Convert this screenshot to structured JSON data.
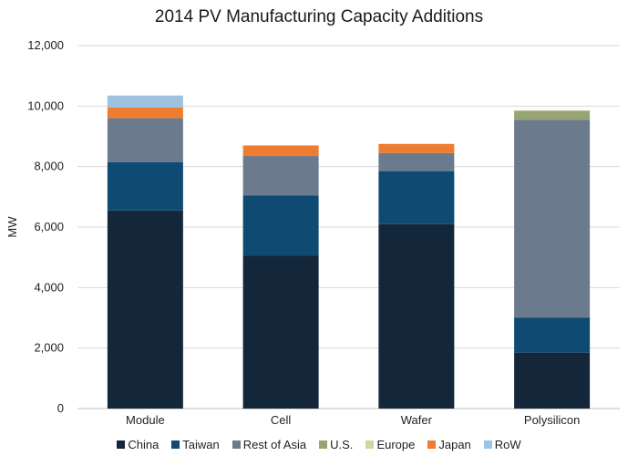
{
  "chart_data": {
    "type": "bar",
    "stacked": true,
    "title": "2014 PV Manufacturing Capacity Additions",
    "xlabel": "",
    "ylabel": "MW",
    "ylim": [
      0,
      12000
    ],
    "yticks": [
      0,
      2000,
      4000,
      6000,
      8000,
      10000,
      12000
    ],
    "ytick_labels": [
      "0",
      "2,000",
      "4,000",
      "6,000",
      "8,000",
      "10,000",
      "12,000"
    ],
    "categories": [
      "Module",
      "Cell",
      "Wafer",
      "Polysilicon"
    ],
    "grid": "y",
    "legend_position": "bottom",
    "series": [
      {
        "name": "China",
        "color": "#14273a",
        "values": [
          6550,
          5050,
          6100,
          1850
        ]
      },
      {
        "name": "Taiwan",
        "color": "#0f4a72",
        "values": [
          1600,
          2000,
          1750,
          1150
        ]
      },
      {
        "name": "Rest of Asia",
        "color": "#6b7a8d",
        "values": [
          1450,
          1300,
          600,
          6550
        ]
      },
      {
        "name": "U.S.",
        "color": "#98a572",
        "values": [
          0,
          0,
          0,
          300
        ]
      },
      {
        "name": "Europe",
        "color": "#cdd8a0",
        "values": [
          0,
          0,
          0,
          0
        ]
      },
      {
        "name": "Japan",
        "color": "#ee7d31",
        "values": [
          350,
          350,
          300,
          0
        ]
      },
      {
        "name": "RoW",
        "color": "#9dc3e0",
        "values": [
          400,
          0,
          0,
          0
        ]
      }
    ]
  }
}
